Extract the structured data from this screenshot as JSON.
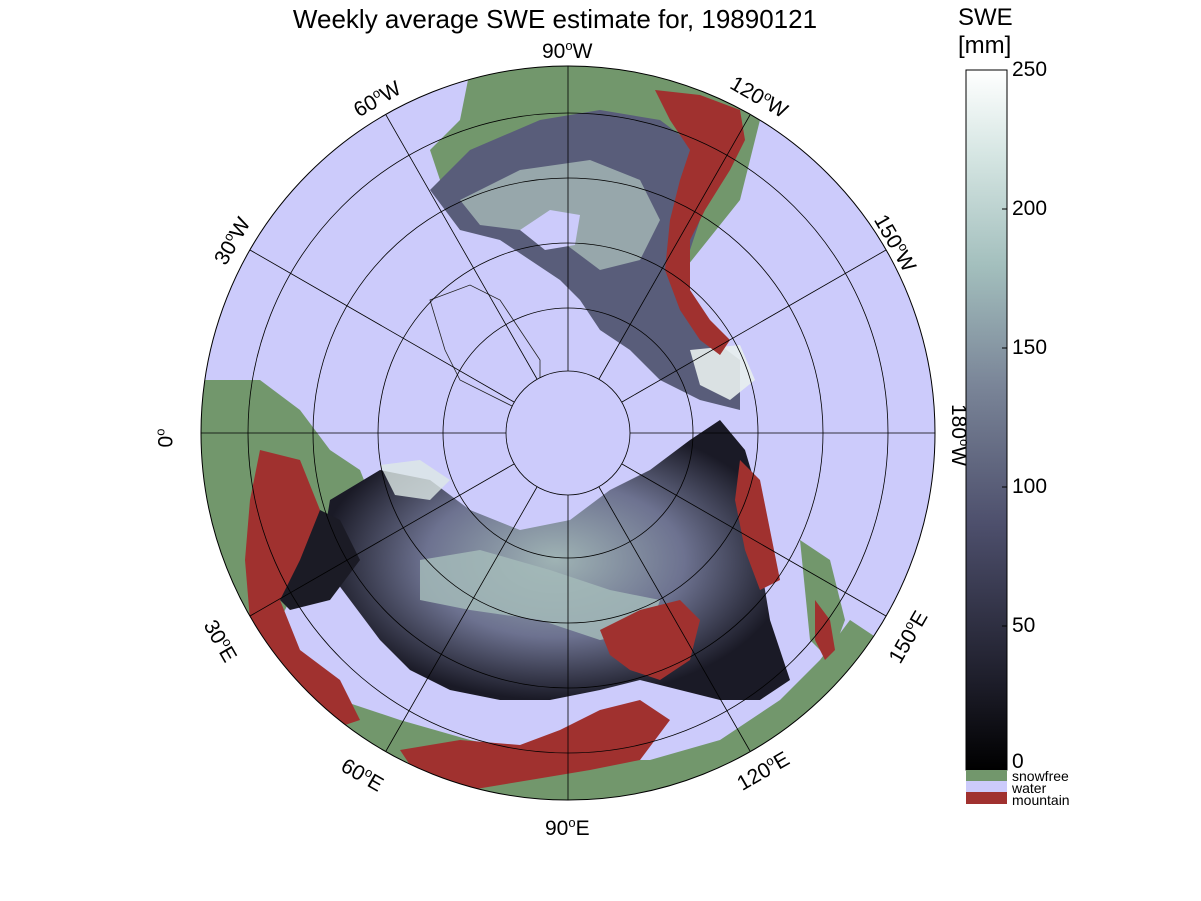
{
  "title": "Weekly average SWE estimate for, 19890121",
  "map": {
    "projection": "north-polar stereographic",
    "longitude_labels": {
      "lon_90W": "90",
      "lon_120W": "120",
      "lon_150W": "150",
      "lon_180W": "180",
      "lon_150E": "150",
      "lon_120E": "120",
      "lon_90E": "90",
      "lon_60E": "60",
      "lon_30E": "30",
      "lon_0": "0",
      "lon_30W": "30",
      "lon_60W": "60"
    },
    "longitude_dirs": {
      "lon_90W": "W",
      "lon_120W": "W",
      "lon_150W": "W",
      "lon_180W": "W",
      "lon_150E": "E",
      "lon_120E": "E",
      "lon_90E": "E",
      "lon_60E": "E",
      "lon_30E": "E",
      "lon_0": "",
      "lon_30W": "W",
      "lon_60W": "W"
    },
    "degree_symbol": "o",
    "colors": {
      "snowfree": "#72976c",
      "water": "#cccbfb",
      "mountain": "#a0312f",
      "swe_low": "#0a0a12",
      "swe_mid": "#7a7f98",
      "swe_high": "#eef5f3"
    }
  },
  "colorbar": {
    "title_line1": "SWE",
    "title_line2": "[mm]",
    "range": [
      0,
      250
    ],
    "ticks": [
      "250",
      "200",
      "150",
      "100",
      "50",
      "0"
    ],
    "legend": [
      {
        "label": "snowfree",
        "color": "#72976c"
      },
      {
        "label": "water",
        "color": "#cccbfb"
      },
      {
        "label": "mountain",
        "color": "#a0312f"
      }
    ]
  }
}
